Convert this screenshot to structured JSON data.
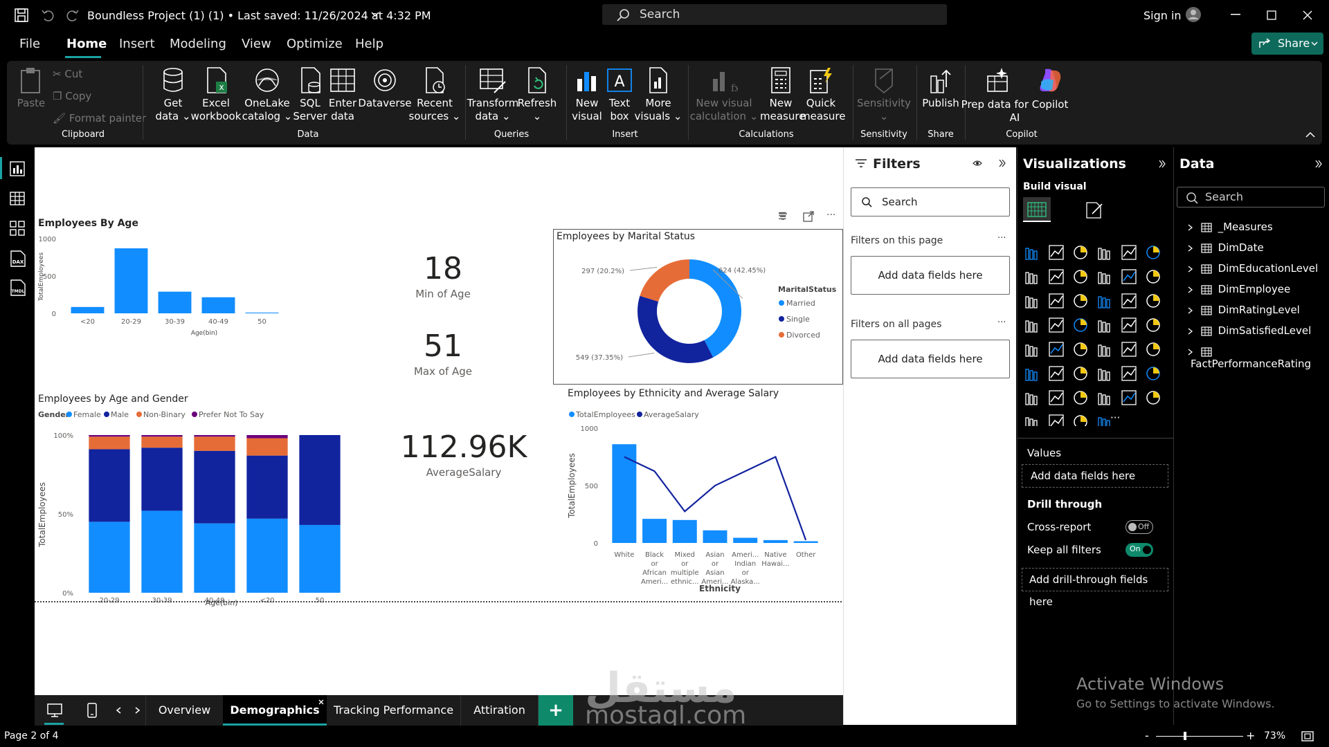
{
  "titlebar": {
    "title": "Boundless Project (1) (1) • Last saved: 11/26/2024 at 4:32 PM",
    "search": "Search",
    "sign_in": "Sign in"
  },
  "menu": {
    "items": [
      "File",
      "Home",
      "Insert",
      "Modeling",
      "View",
      "Optimize",
      "Help"
    ],
    "share": "Share"
  },
  "ribbon": {
    "clipboard": {
      "paste": "Paste",
      "cut": "Cut",
      "copy": "Copy",
      "format_painter": "Format painter",
      "group": "Clipboard"
    },
    "data": {
      "get_data": [
        "Get",
        "data ⌄"
      ],
      "excel": [
        "Excel",
        "workbook"
      ],
      "onelake": [
        "OneLake",
        "catalog ⌄"
      ],
      "sql": [
        "SQL",
        "Server"
      ],
      "enter": [
        "Enter",
        "data"
      ],
      "dataverse": "Dataverse",
      "recent": [
        "Recent",
        "sources ⌄"
      ],
      "group": "Data"
    },
    "queries": {
      "transform": [
        "Transform",
        "data ⌄"
      ],
      "refresh": [
        "Refresh",
        "⌄"
      ],
      "group": "Queries"
    },
    "insert": {
      "new_visual": [
        "New",
        "visual"
      ],
      "text_box": [
        "Text",
        "box"
      ],
      "more_visuals": [
        "More",
        "visuals ⌄"
      ],
      "group": "Insert"
    },
    "calculations": {
      "new_visual_calc": [
        "New visual",
        "calculation ⌄"
      ],
      "new_measure": [
        "New",
        "measure"
      ],
      "quick_measure": [
        "Quick",
        "measure"
      ],
      "group": "Calculations"
    },
    "sensitivity": {
      "label": [
        "Sensitivity",
        "⌄"
      ],
      "group": "Sensitivity"
    },
    "share": {
      "publish": "Publish",
      "group": "Share"
    },
    "copilot": {
      "prep": [
        "Prep data for Copilot",
        "AI"
      ],
      "group": "Copilot"
    }
  },
  "visuals": {
    "age": {
      "title": "Employees By Age",
      "ylabel": "TotalEmployees",
      "xlabel": "Age(bin)"
    },
    "cards": [
      {
        "value": "18",
        "label": "Min of Age"
      },
      {
        "value": "51",
        "label": "Max of Age"
      },
      {
        "value": "112.96K",
        "label": "AverageSalary"
      }
    ],
    "marital": {
      "title": "Employees by Marital Status",
      "legend_title": "MaritalStatus"
    },
    "gender": {
      "title": "Employees by Age and Gender",
      "legend_title": "Gender",
      "ylabel": "TotalEmployees",
      "xlabel": "Age(bin)"
    },
    "ethnicity": {
      "title": "Employees by Ethnicity and Average Salary",
      "ylabel": "TotalEmployees",
      "y2label": "AverageSalary",
      "xlabel": "Ethnicity"
    }
  },
  "chart_data": [
    {
      "type": "bar",
      "title": "Employees By Age",
      "categories": [
        "<20",
        "20-29",
        "30-39",
        "40-49",
        "50"
      ],
      "values": [
        85,
        870,
        290,
        215,
        10
      ],
      "ylabel": "TotalEmployees",
      "xlabel": "Age(bin)",
      "ylim": [
        0,
        1000
      ],
      "yticks": [
        "0",
        "500",
        "1000"
      ],
      "color": "#118DFF"
    },
    {
      "type": "pie",
      "title": "Employees by Marital Status",
      "categories": [
        "Married",
        "Single",
        "Divorced"
      ],
      "values": [
        624,
        549,
        297
      ],
      "labels": [
        "624 (42.45%)",
        "549 (37.35%)",
        "297 (20.2%)"
      ],
      "colors": [
        "#118DFF",
        "#12239E",
        "#E66C37"
      ],
      "legend": "right"
    },
    {
      "type": "bar",
      "title": "Employees by Age and Gender",
      "categories": [
        "20-29",
        "30-39",
        "40-49",
        "<20",
        "50"
      ],
      "series": [
        {
          "name": "Female",
          "values": [
            45,
            52,
            44,
            47,
            43
          ],
          "color": "#118DFF"
        },
        {
          "name": "Male",
          "values": [
            46,
            40,
            46,
            40,
            57
          ],
          "color": "#12239E"
        },
        {
          "name": "Non-Binary",
          "values": [
            8,
            7,
            9,
            11,
            0
          ],
          "color": "#E66C37"
        },
        {
          "name": "Prefer Not To Say",
          "values": [
            1,
            1,
            1,
            2,
            0
          ],
          "color": "#6B007B"
        }
      ],
      "ylabel": "TotalEmployees",
      "xlabel": "Age(bin)",
      "ylim": [
        0,
        100
      ],
      "yticks": [
        "0%",
        "50%",
        "100%"
      ],
      "legend": "top-left"
    },
    {
      "type": "bar",
      "title": "Employees by Ethnicity and Average Salary",
      "categories": [
        "White",
        "Black or African Ameri...",
        "Mixed or multiple ethnic...",
        "Asian or Asian Ameri...",
        "Ameri... Indian or Alaska...",
        "Native Hawai...",
        "Other"
      ],
      "series": [
        {
          "name": "TotalEmployees",
          "type": "bar",
          "values": [
            860,
            210,
            200,
            110,
            45,
            25,
            15
          ],
          "color": "#118DFF"
        },
        {
          "name": "AverageSalary",
          "type": "line",
          "values": [
            115000,
            112500,
            105500,
            110000,
            112500,
            115000,
            100500
          ],
          "color": "#12239E"
        }
      ],
      "ylabel": "TotalEmployees",
      "y2label": "AverageSalary",
      "xlabel": "Ethnicity",
      "ylim": [
        0,
        1000
      ],
      "y2lim": [
        100000,
        120000
      ],
      "yticks": [
        "0",
        "500",
        "1000"
      ],
      "y2ticks": [
        "100K",
        "105K",
        "110K",
        "115K",
        "120K"
      ],
      "legend": "top-left"
    }
  ],
  "filters": {
    "title": "Filters",
    "search": "Search",
    "on_page": "Filters on this page",
    "on_all": "Filters on all pages",
    "add": "Add data fields here"
  },
  "viz": {
    "title": "Visualizations",
    "build": "Build visual",
    "values": "Values",
    "add_fields": "Add data fields here",
    "drill": "Drill through",
    "cross": "Cross-report",
    "cross_state": "Off",
    "keep": "Keep all filters",
    "keep_state": "On",
    "add_drill": "Add drill-through fields here",
    "more": "···"
  },
  "data": {
    "title": "Data",
    "search": "Search",
    "tables": [
      "_Measures",
      "DimDate",
      "DimEducationLevel",
      "DimEmployee",
      "DimRatingLevel",
      "DimSatisfiedLevel",
      "FactPerformanceRating"
    ]
  },
  "pages": {
    "tabs": [
      "Overview",
      "Demographics",
      "Tracking Performance",
      "Attiration"
    ],
    "active": "Demographics",
    "add": "+"
  },
  "status": {
    "page": "Page 2 of 4",
    "zoom": "73%",
    "minus": "-",
    "plus": "+"
  },
  "watermark": {
    "activate": "Activate Windows",
    "go": "Go to Settings to activate Windows.",
    "brand": "mostaql.com",
    "brand_ar": "مستقل"
  }
}
